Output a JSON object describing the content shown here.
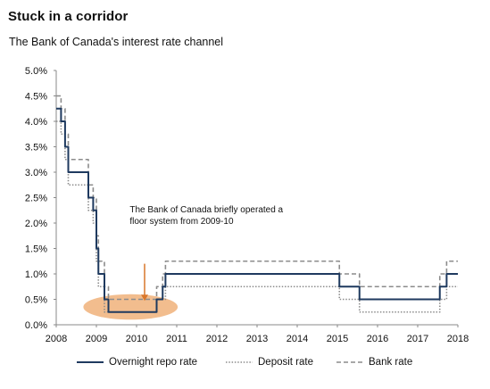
{
  "title": "Stuck in a corridor",
  "subtitle": "The Bank of Canada's interest rate channel",
  "annotation": [
    "The Bank of Canada briefly operated a",
    "floor system from 2009-10"
  ],
  "colors": {
    "overnight": "#1f3a5f",
    "deposit": "#8c8c8c",
    "bank": "#8c8c8c",
    "highlight": "#f0b27a",
    "arrow": "#d9772b"
  },
  "chart_data": {
    "type": "line",
    "title": "Stuck in a corridor",
    "subtitle": "The Bank of Canada's interest rate channel",
    "xlabel": "",
    "ylabel": "",
    "xlim": [
      2008,
      2018
    ],
    "ylim": [
      0,
      5
    ],
    "x_ticks": [
      "2008",
      "2009",
      "2010",
      "2011",
      "2012",
      "2013",
      "2014",
      "2015",
      "2016",
      "2017",
      "2018"
    ],
    "y_ticks": [
      "0.0%",
      "0.5%",
      "1.0%",
      "1.5%",
      "2.0%",
      "2.5%",
      "3.0%",
      "3.5%",
      "4.0%",
      "4.5%",
      "5.0%"
    ],
    "grid": false,
    "legend": "bottom",
    "series": [
      {
        "name": "Overnight repo rate",
        "style": "solid",
        "points": [
          [
            2008.0,
            4.25
          ],
          [
            2008.12,
            4.0
          ],
          [
            2008.22,
            3.5
          ],
          [
            2008.3,
            3.0
          ],
          [
            2008.76,
            3.0
          ],
          [
            2008.8,
            2.5
          ],
          [
            2008.92,
            2.25
          ],
          [
            2009.0,
            1.5
          ],
          [
            2009.05,
            1.0
          ],
          [
            2009.2,
            0.5
          ],
          [
            2009.3,
            0.25
          ],
          [
            2010.45,
            0.25
          ],
          [
            2010.5,
            0.5
          ],
          [
            2010.65,
            0.75
          ],
          [
            2010.72,
            1.0
          ],
          [
            2015.0,
            1.0
          ],
          [
            2015.05,
            0.75
          ],
          [
            2015.55,
            0.5
          ],
          [
            2017.5,
            0.5
          ],
          [
            2017.55,
            0.75
          ],
          [
            2017.72,
            1.0
          ],
          [
            2018.0,
            1.0
          ]
        ]
      },
      {
        "name": "Deposit rate",
        "style": "dotted",
        "points": [
          [
            2008.0,
            4.0
          ],
          [
            2008.12,
            3.75
          ],
          [
            2008.22,
            3.25
          ],
          [
            2008.3,
            2.75
          ],
          [
            2008.76,
            2.75
          ],
          [
            2008.8,
            2.25
          ],
          [
            2008.92,
            2.0
          ],
          [
            2009.0,
            1.25
          ],
          [
            2009.05,
            0.75
          ],
          [
            2009.2,
            0.25
          ],
          [
            2010.45,
            0.25
          ],
          [
            2010.5,
            0.5
          ],
          [
            2010.72,
            0.75
          ],
          [
            2015.0,
            0.75
          ],
          [
            2015.05,
            0.5
          ],
          [
            2015.55,
            0.25
          ],
          [
            2017.5,
            0.25
          ],
          [
            2017.55,
            0.5
          ],
          [
            2017.72,
            0.75
          ],
          [
            2018.0,
            0.75
          ]
        ]
      },
      {
        "name": "Bank rate",
        "style": "dashed",
        "points": [
          [
            2008.0,
            4.5
          ],
          [
            2008.12,
            4.25
          ],
          [
            2008.22,
            3.75
          ],
          [
            2008.3,
            3.25
          ],
          [
            2008.76,
            3.25
          ],
          [
            2008.8,
            2.75
          ],
          [
            2008.92,
            2.5
          ],
          [
            2009.0,
            1.75
          ],
          [
            2009.05,
            1.25
          ],
          [
            2009.2,
            0.75
          ],
          [
            2009.3,
            0.5
          ],
          [
            2010.45,
            0.5
          ],
          [
            2010.5,
            0.75
          ],
          [
            2010.65,
            1.0
          ],
          [
            2010.72,
            1.25
          ],
          [
            2015.0,
            1.25
          ],
          [
            2015.05,
            1.0
          ],
          [
            2015.55,
            0.75
          ],
          [
            2017.5,
            0.75
          ],
          [
            2017.55,
            1.0
          ],
          [
            2017.72,
            1.25
          ],
          [
            2018.0,
            1.25
          ]
        ]
      }
    ],
    "highlight": {
      "x_center": 2009.85,
      "x_width": 2.35,
      "y_center": 0.35,
      "y_height": 0.5
    },
    "arrow": {
      "x": 2010.2,
      "y_from": 1.2,
      "y_to": 0.47
    }
  }
}
